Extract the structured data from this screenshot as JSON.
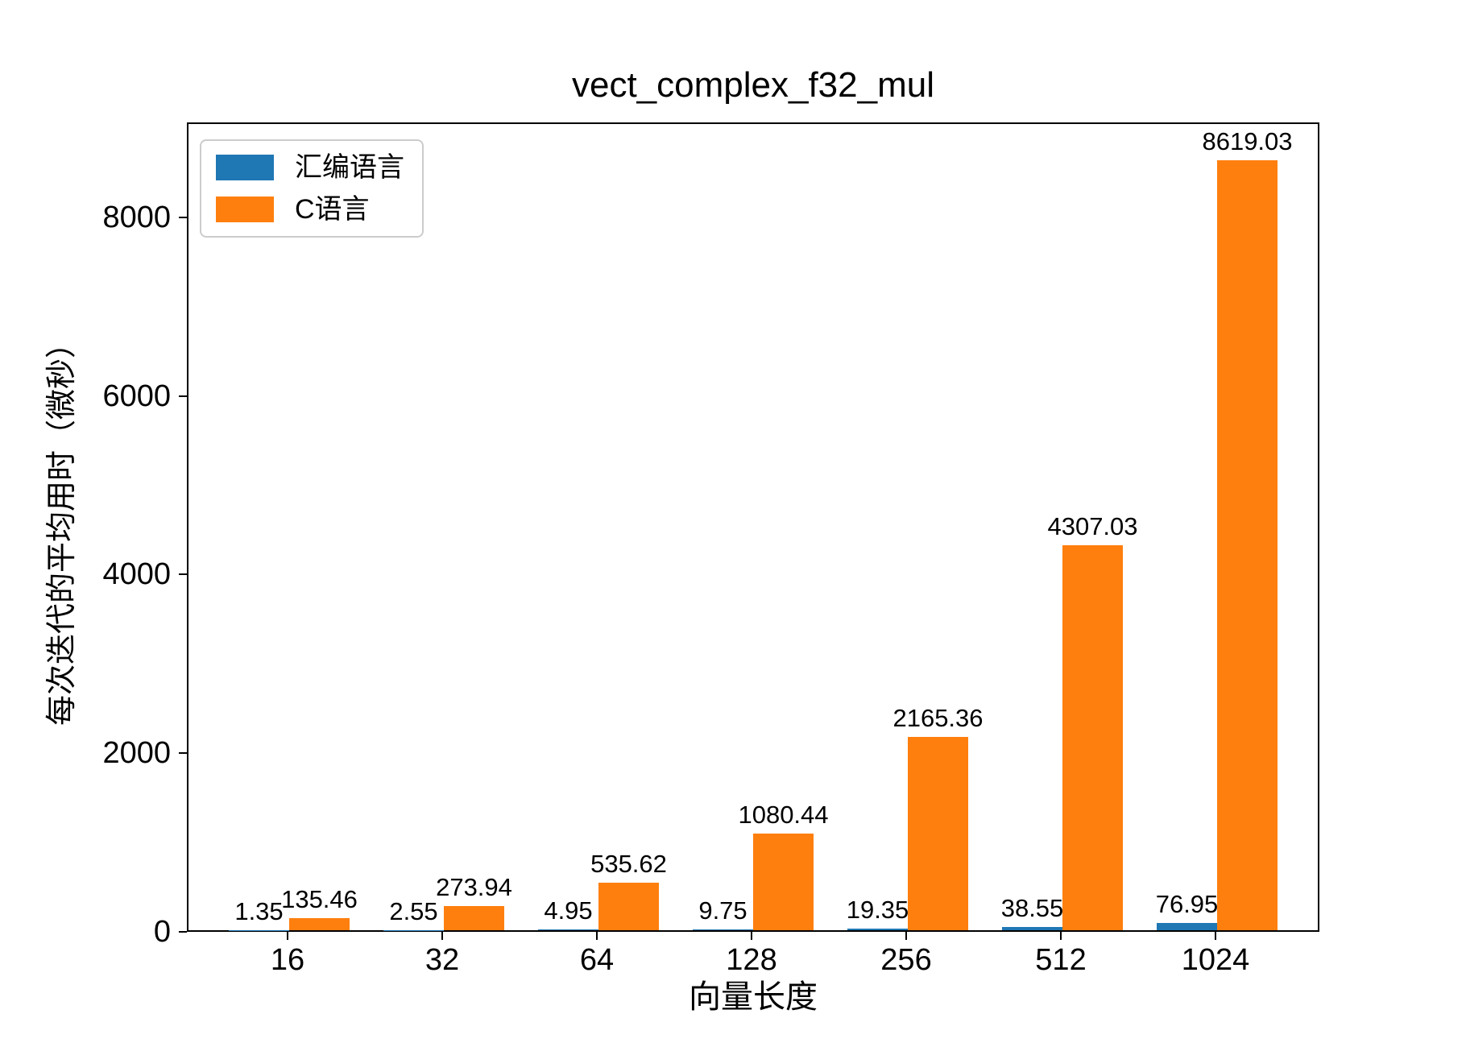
{
  "chart_data": {
    "type": "bar",
    "title": "vect_complex_f32_mul",
    "xlabel": "向量长度",
    "ylabel": "每次迭代的平均用时（微秒）",
    "categories": [
      "16",
      "32",
      "64",
      "128",
      "256",
      "512",
      "1024"
    ],
    "series": [
      {
        "name": "汇编语言",
        "color": "#1f77b4",
        "values": [
          1.35,
          2.55,
          4.95,
          9.75,
          19.35,
          38.55,
          76.95
        ]
      },
      {
        "name": "C语言",
        "color": "#ff7f0e",
        "values": [
          135.46,
          273.94,
          535.62,
          1080.44,
          2165.36,
          4307.03,
          8619.03
        ]
      }
    ],
    "value_label_decimals": 2,
    "yticks": [
      0,
      2000,
      4000,
      6000,
      8000
    ],
    "ylim": [
      0,
      9063
    ],
    "grid": false,
    "legend_position": "upper-left",
    "background_color": "#ffffff",
    "text_color": "#000000"
  }
}
